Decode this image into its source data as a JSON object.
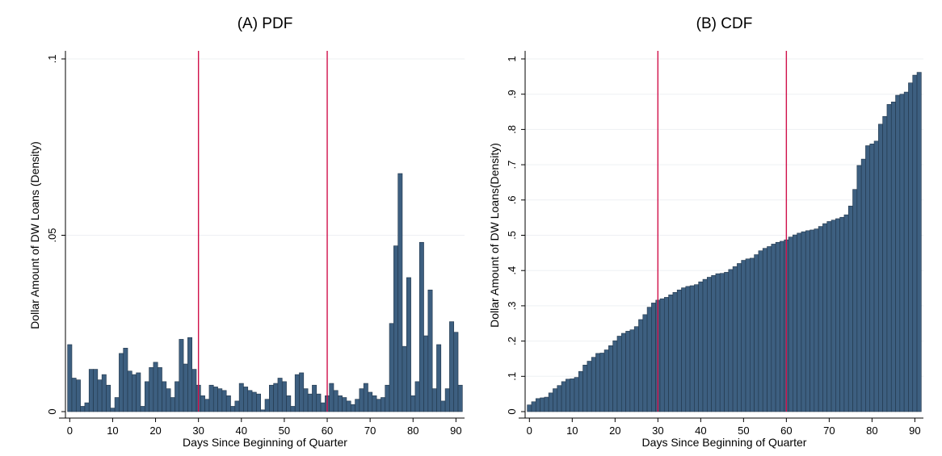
{
  "chart_data": [
    {
      "type": "bar",
      "title": "(A) PDF",
      "xlabel": "Days Since Beginning of Quarter",
      "ylabel": "Dollar Amount of DW Loans (Density)",
      "xlim": [
        -1,
        92
      ],
      "ylim": [
        0,
        0.1
      ],
      "xticks": [
        0,
        10,
        20,
        30,
        40,
        50,
        60,
        70,
        80,
        90
      ],
      "yticks": [
        0,
        0.05,
        0.1
      ],
      "ytick_labels": [
        "0",
        ".05",
        ".1"
      ],
      "vlines": [
        30,
        60
      ],
      "grid": true,
      "x": [
        0,
        1,
        2,
        3,
        4,
        5,
        6,
        7,
        8,
        9,
        10,
        11,
        12,
        13,
        14,
        15,
        16,
        17,
        18,
        19,
        20,
        21,
        22,
        23,
        24,
        25,
        26,
        27,
        28,
        29,
        30,
        31,
        32,
        33,
        34,
        35,
        36,
        37,
        38,
        39,
        40,
        41,
        42,
        43,
        44,
        45,
        46,
        47,
        48,
        49,
        50,
        51,
        52,
        53,
        54,
        55,
        56,
        57,
        58,
        59,
        60,
        61,
        62,
        63,
        64,
        65,
        66,
        67,
        68,
        69,
        70,
        71,
        72,
        73,
        74,
        75,
        76,
        77,
        78,
        79,
        80,
        81,
        82,
        83,
        84,
        85,
        86,
        87,
        88,
        89,
        90,
        91
      ],
      "values": [
        0.019,
        0.0095,
        0.009,
        0.0015,
        0.0025,
        0.012,
        0.012,
        0.009,
        0.0105,
        0.0075,
        0.001,
        0.004,
        0.0165,
        0.018,
        0.0115,
        0.0105,
        0.011,
        0.0015,
        0.0085,
        0.0125,
        0.014,
        0.0125,
        0.0085,
        0.0065,
        0.004,
        0.0085,
        0.0205,
        0.0135,
        0.021,
        0.012,
        0.0075,
        0.0045,
        0.0035,
        0.0075,
        0.007,
        0.0065,
        0.006,
        0.0045,
        0.0015,
        0.003,
        0.008,
        0.007,
        0.006,
        0.0055,
        0.005,
        0.0005,
        0.0035,
        0.0075,
        0.008,
        0.0095,
        0.0085,
        0.0045,
        0.0015,
        0.0105,
        0.011,
        0.0065,
        0.005,
        0.0075,
        0.005,
        0.0025,
        0.0045,
        0.008,
        0.006,
        0.0045,
        0.004,
        0.003,
        0.002,
        0.0035,
        0.0065,
        0.008,
        0.0055,
        0.0045,
        0.0035,
        0.004,
        0.0075,
        0.025,
        0.047,
        0.0675,
        0.0185,
        0.038,
        0.0045,
        0.0085,
        0.048,
        0.0215,
        0.0345,
        0.0065,
        0.019,
        0.003,
        0.0065,
        0.0255,
        0.0225,
        0.0075
      ]
    },
    {
      "type": "bar",
      "title": "(B) CDF",
      "xlabel": "Days Since Beginning of Quarter",
      "ylabel": "Dollar Amount of DW Loans(Density)",
      "xlim": [
        -1,
        92
      ],
      "ylim": [
        0,
        1
      ],
      "xticks": [
        0,
        10,
        20,
        30,
        40,
        50,
        60,
        70,
        80,
        90
      ],
      "yticks": [
        0,
        0.1,
        0.2,
        0.3,
        0.4,
        0.5,
        0.6,
        0.7,
        0.8,
        0.9,
        1
      ],
      "ytick_labels": [
        "0",
        ".1",
        ".2",
        ".3",
        ".4",
        ".5",
        ".6",
        ".7",
        ".8",
        ".9",
        "1"
      ],
      "vlines": [
        30,
        60
      ],
      "grid": true,
      "x": [
        0,
        1,
        2,
        3,
        4,
        5,
        6,
        7,
        8,
        9,
        10,
        11,
        12,
        13,
        14,
        15,
        16,
        17,
        18,
        19,
        20,
        21,
        22,
        23,
        24,
        25,
        26,
        27,
        28,
        29,
        30,
        31,
        32,
        33,
        34,
        35,
        36,
        37,
        38,
        39,
        40,
        41,
        42,
        43,
        44,
        45,
        46,
        47,
        48,
        49,
        50,
        51,
        52,
        53,
        54,
        55,
        56,
        57,
        58,
        59,
        60,
        61,
        62,
        63,
        64,
        65,
        66,
        67,
        68,
        69,
        70,
        71,
        72,
        73,
        74,
        75,
        76,
        77,
        78,
        79,
        80,
        81,
        82,
        83,
        84,
        85,
        86,
        87,
        88,
        89,
        90,
        91
      ],
      "values": [
        0.019,
        0.028,
        0.037,
        0.039,
        0.041,
        0.053,
        0.065,
        0.074,
        0.085,
        0.092,
        0.093,
        0.097,
        0.114,
        0.132,
        0.143,
        0.154,
        0.165,
        0.166,
        0.175,
        0.187,
        0.201,
        0.214,
        0.222,
        0.228,
        0.232,
        0.241,
        0.261,
        0.275,
        0.296,
        0.308,
        0.316,
        0.32,
        0.324,
        0.331,
        0.338,
        0.345,
        0.351,
        0.355,
        0.357,
        0.36,
        0.368,
        0.375,
        0.381,
        0.386,
        0.391,
        0.392,
        0.395,
        0.403,
        0.411,
        0.42,
        0.429,
        0.433,
        0.435,
        0.445,
        0.456,
        0.463,
        0.468,
        0.475,
        0.48,
        0.483,
        0.487,
        0.495,
        0.501,
        0.506,
        0.51,
        0.513,
        0.515,
        0.518,
        0.525,
        0.533,
        0.539,
        0.543,
        0.547,
        0.551,
        0.558,
        0.583,
        0.63,
        0.698,
        0.716,
        0.754,
        0.759,
        0.767,
        0.815,
        0.837,
        0.871,
        0.878,
        0.897,
        0.9,
        0.906,
        0.932,
        0.954,
        0.962
      ]
    }
  ]
}
